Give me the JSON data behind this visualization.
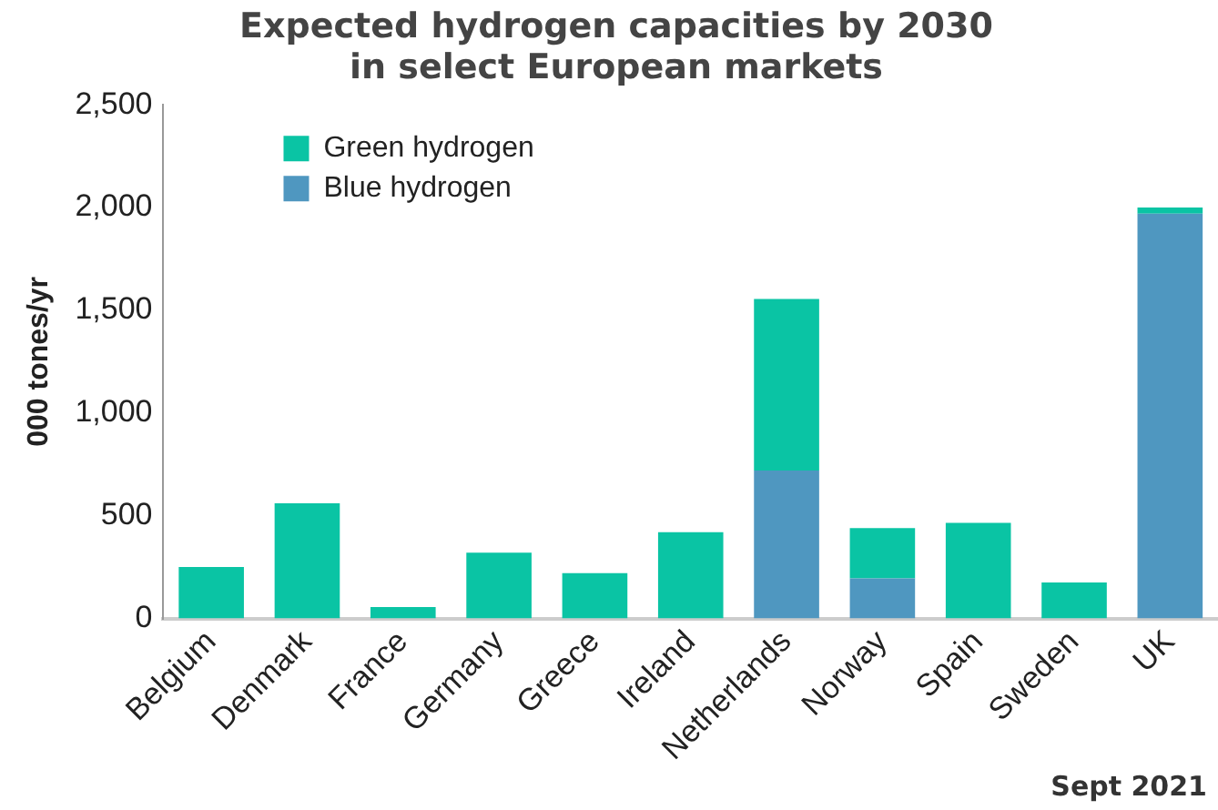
{
  "chart_data": {
    "type": "bar",
    "stacked": true,
    "title": "Expected hydrogen capacities by 2030\nin select European markets",
    "ylabel": "000 tones/yr",
    "categories": [
      "Belgium",
      "Denmark",
      "France",
      "Germany",
      "Greece",
      "Ireland",
      "Netherlands",
      "Norway",
      "Spain",
      "Sweden",
      "UK"
    ],
    "series": [
      {
        "name": "Blue hydrogen",
        "color": "#4f97c0",
        "values": [
          0,
          0,
          0,
          0,
          0,
          0,
          720,
          195,
          0,
          0,
          1970
        ]
      },
      {
        "name": "Green hydrogen",
        "color": "#0ac4a4",
        "values": [
          250,
          560,
          55,
          320,
          220,
          420,
          835,
          245,
          465,
          175,
          30
        ]
      }
    ],
    "ylim": [
      0,
      2500
    ],
    "yticks": [
      {
        "value": 0,
        "label": "0"
      },
      {
        "value": 500,
        "label": "500"
      },
      {
        "value": 1000,
        "label": "1,000"
      },
      {
        "value": 1500,
        "label": "1,500"
      },
      {
        "value": 2000,
        "label": "2,000"
      },
      {
        "value": 2500,
        "label": "2,500"
      }
    ],
    "grid": false,
    "legend": "top left",
    "annotations": [
      "Sept 2021"
    ]
  }
}
